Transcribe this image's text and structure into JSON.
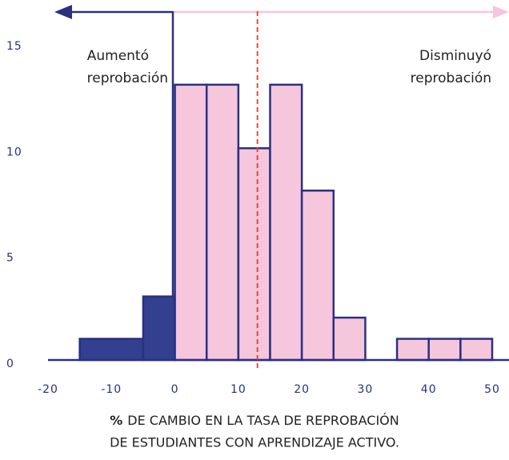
{
  "chart_data": {
    "type": "histogram",
    "bins": [
      -15,
      -5,
      0,
      5,
      10,
      15,
      20,
      25,
      30,
      35,
      40,
      45,
      50
    ],
    "values": [
      1,
      3,
      13,
      13,
      10,
      13,
      8,
      2,
      0,
      1,
      1,
      1
    ],
    "colors": [
      "#333f8f",
      "#333f8f",
      "#f6c6dc",
      "#f6c6dc",
      "#f6c6dc",
      "#f6c6dc",
      "#f6c6dc",
      "#f6c6dc",
      "#f6c6dc",
      "#f6c6dc",
      "#f6c6dc",
      "#f6c6dc"
    ],
    "edge_color": "#2b3080",
    "xlim": [
      -20,
      50
    ],
    "xticks": [
      -20,
      -10,
      0,
      10,
      20,
      30,
      40,
      50
    ],
    "ylim": [
      0,
      17
    ],
    "yticks": [
      0,
      5,
      10,
      15
    ],
    "grid": false,
    "reference_line": {
      "x": 13,
      "color": "#e8392f"
    },
    "annotations": [
      [
        "Aumentó",
        "reprobación"
      ],
      [
        "Disminuyó",
        "reprobación"
      ]
    ],
    "xlabel_bold": "%",
    "xlabel": [
      "DE CAMBIO EN LA TASA DE REPROBACIÓN",
      "DE ESTUDIANTES CON APRENDIZAJE ACTIVO."
    ]
  }
}
